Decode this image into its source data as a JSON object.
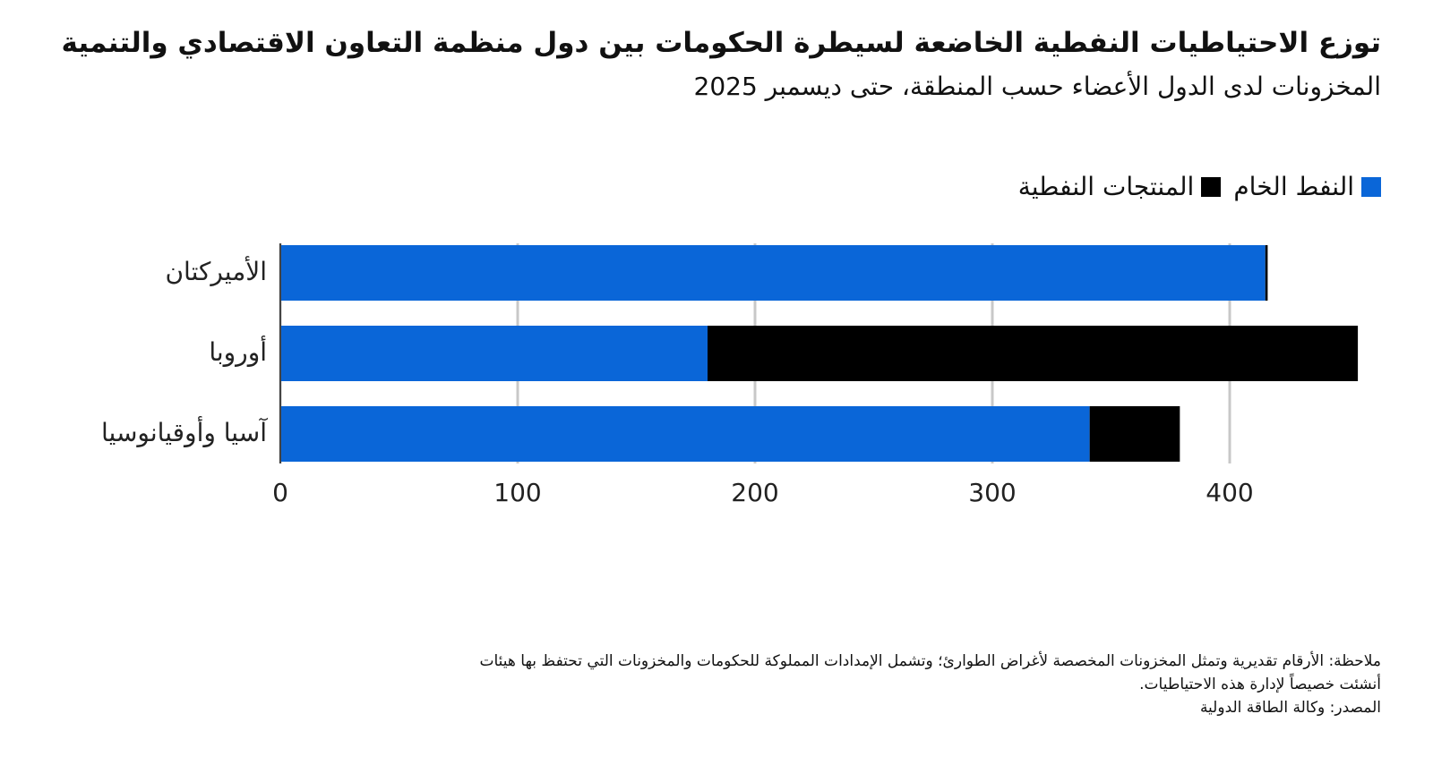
{
  "chart_data": {
    "type": "stacked-barh",
    "title": "توزع الاحتياطيات النفطية الخاضعة لسيطرة الحكومات بين دول منظمة التعاون الاقتصادي والتنمية",
    "subtitle": "المخزونات لدى الدول الأعضاء حسب المنطقة، حتى ديسمبر 2025",
    "categories": [
      "الأميركتان",
      "أوروبا",
      "آسيا وأوقيانوسيا"
    ],
    "series": [
      {
        "name": "النفط الخام",
        "color": "#0a66d8",
        "values": [
          415,
          180,
          341
        ]
      },
      {
        "name": "المنتجات النفطية",
        "color": "#000000",
        "values": [
          1,
          274,
          38
        ]
      }
    ],
    "xlim": [
      0,
      460
    ],
    "xticks": [
      0,
      100,
      200,
      300,
      400
    ],
    "grid": true,
    "legend": "top-right",
    "note": [
      "ملاحظة: الأرقام تقديرية وتمثل المخزونات المخصصة لأغراض الطوارئ؛ وتشمل الإمدادات المملوكة للحكومات والمخزونات التي تحتفظ بها هيئات",
      "أنشئت خصيصاً لإدارة هذه الاحتياطيات."
    ],
    "source": "المصدر: وكالة الطاقة الدولية"
  }
}
